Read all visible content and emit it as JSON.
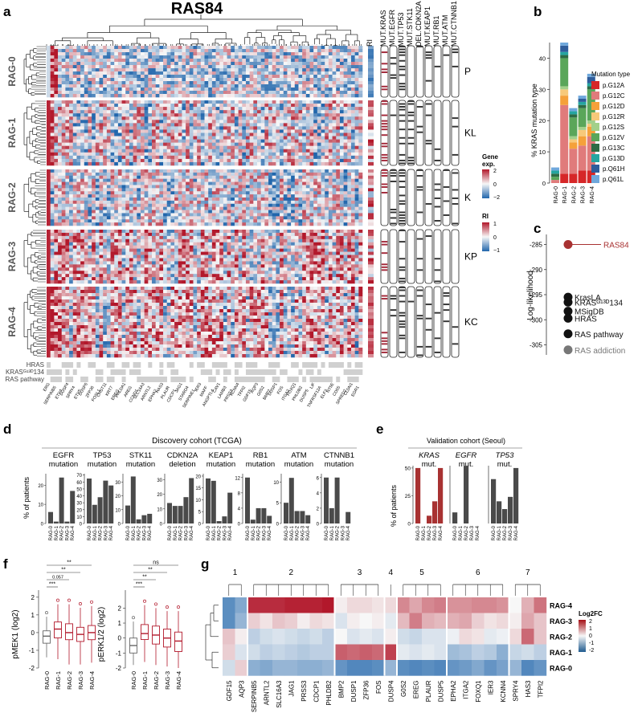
{
  "panel_labels": [
    "a",
    "b",
    "c",
    "d",
    "e",
    "f",
    "g"
  ],
  "panel_a": {
    "title": "RAS84",
    "ri_col_label": "RI",
    "mut_cols": [
      "MUT.KRAS",
      "MUT.EGFR",
      "MUT.TP53",
      "MUT.STK11",
      "DEL.CDKN2A",
      "MUT.KEAP1",
      "MUT.RB1",
      "MUT.ATM",
      "MUT.CTNNB1"
    ],
    "groups": [
      {
        "name": "RAG-0",
        "subtype": "P"
      },
      {
        "name": "RAG-1",
        "subtype": "KL"
      },
      {
        "name": "RAG-2",
        "subtype": "K"
      },
      {
        "name": "RAG-3",
        "subtype": "KP"
      },
      {
        "name": "RAG-4",
        "subtype": "KC"
      }
    ],
    "annot_rows": [
      "HRAS",
      "KRASᴳ¹³ᴰ134",
      "RAS pathway"
    ],
    "legend_gene_title_1": "Gene",
    "legend_gene_title_2": "exp.",
    "legend_gene_ticks": [
      "2",
      "0",
      "−2"
    ],
    "legend_ri_title": "RI",
    "legend_ri_ticks": [
      "1",
      "0",
      "−1"
    ],
    "gene_labels": [
      "ERG",
      "SERPINB5",
      "ETV4",
      "DUSP4",
      "SPRY4",
      "ETV5",
      "DUSP6",
      "ZFP36",
      "FOSL1",
      "CHST11",
      "KRT7",
      "EREG",
      "PHLDA1",
      "AREG",
      "CCND1",
      "SLC16A3",
      "ARNTL2",
      "EPHA2",
      "HAS3",
      "PLAUR",
      "CDCP1",
      "JAG1",
      "STARD4",
      "SERPINE1",
      "IER3",
      "MAFF",
      "ANGPTL4",
      "CAV1",
      "LAMB3",
      "PRSS3",
      "KCNN4",
      "TFPI2",
      "GDF15",
      "AQP3",
      "G0S2",
      "BMP2",
      "DUSP1",
      "FOS",
      "ITGA2",
      "FOXQ1",
      "PHLDB2",
      "DUSP5",
      "LIF",
      "TNFRSF12A",
      "ELF3",
      "NT5E",
      "CD55",
      "SPRED2",
      "CLDN1",
      "EGR1"
    ]
  },
  "panel_b": {
    "ylabel": "% KRAS mutation type",
    "legend_title": "Mutation type",
    "ylim": [
      0,
      45
    ],
    "yticks": [
      "0",
      "10",
      "20",
      "30",
      "40"
    ],
    "legend_items": [
      {
        "name": "p.G12A",
        "color": "#d62728"
      },
      {
        "name": "p.G12C",
        "color": "#e07b7b"
      },
      {
        "name": "p.G12D",
        "color": "#f5a13a"
      },
      {
        "name": "p.G12R",
        "color": "#f7c97a"
      },
      {
        "name": "p.G12S",
        "color": "#a3d08a"
      },
      {
        "name": "p.G12V",
        "color": "#5aa65a"
      },
      {
        "name": "p.G13C",
        "color": "#2e6b45"
      },
      {
        "name": "p.G13D",
        "color": "#25a5a0"
      },
      {
        "name": "p.Q61H",
        "color": "#2f5d9b"
      },
      {
        "name": "p.Q61L",
        "color": "#6fa8dc"
      }
    ]
  },
  "panel_c": {
    "ylabel": "Log-likelihood",
    "yticks": [
      "-285",
      "-290",
      "-295",
      "-300",
      "-305"
    ],
    "ylim": [
      -307,
      -283
    ]
  },
  "panel_d": {
    "title": "Discovery cohort (TCGA)",
    "ylabel": "% of patients"
  },
  "panel_e": {
    "title": "Validation cohort (Seoul)",
    "ylabel": "% of patients",
    "yticks": [
      "0",
      "25",
      "50"
    ]
  },
  "panel_f": {
    "plot1_ylabel": "pMEK1 (log2)",
    "plot2_ylabel": "pERK1/2 (log2)",
    "p_values_1": [
      "***",
      "0.057",
      "**",
      "**"
    ],
    "p_values_2": [
      "***",
      "**",
      "**",
      "ns"
    ]
  },
  "panel_g": {
    "cluster_numbers": [
      "1",
      "2",
      "3",
      "4",
      "5",
      "6",
      "7"
    ],
    "legend_title": "Log2FC",
    "legend_ticks": [
      "2",
      "1",
      "0",
      "-1",
      "-2"
    ],
    "row_labels": [
      "RAG-4",
      "RAG-3",
      "RAG-2",
      "RAG-1",
      "RAG-0"
    ],
    "genes": [
      "GDF15",
      "AQP3",
      "SERPINB5",
      "ARNTL2",
      "SLC16A3",
      "JAG1",
      "PRSS3",
      "CDCP1",
      "PHLDB2",
      "BMP2",
      "DUSP1",
      "ZFP36",
      "FOS",
      "DUSP4",
      "G0S2",
      "EREG",
      "PLAUR",
      "DUSP5",
      "EPHA2",
      "ITGA2",
      "FOXQ1",
      "IER3",
      "KCNN4",
      "SPRY4",
      "HAS3",
      "TFPI2"
    ]
  },
  "chart_data": [
    {
      "id": "b",
      "type": "bar",
      "stacked": true,
      "title": "",
      "xlabel": "",
      "ylabel": "% KRAS mutation type",
      "ylim": [
        0,
        45
      ],
      "categories": [
        "RAG-0",
        "RAG-1",
        "RAG-2",
        "RAG-3",
        "RAG-4"
      ],
      "series": [
        {
          "name": "p.G12A",
          "values": [
            0,
            3,
            3,
            4,
            4
          ]
        },
        {
          "name": "p.G12C",
          "values": [
            1,
            22,
            8,
            8,
            11
          ]
        },
        {
          "name": "p.G12D",
          "values": [
            0,
            3,
            2,
            3,
            3
          ]
        },
        {
          "name": "p.G12R",
          "values": [
            0,
            2,
            1,
            2,
            1
          ]
        },
        {
          "name": "p.G12S",
          "values": [
            0,
            1,
            1,
            1,
            1
          ]
        },
        {
          "name": "p.G12V",
          "values": [
            1,
            9,
            6,
            6,
            10
          ]
        },
        {
          "name": "p.G13C",
          "values": [
            1,
            1,
            1,
            1,
            1
          ]
        },
        {
          "name": "p.G13D",
          "values": [
            1,
            1,
            1,
            1,
            1
          ]
        },
        {
          "name": "p.Q61H",
          "values": [
            0,
            2,
            0,
            1,
            2
          ]
        },
        {
          "name": "p.Q61L",
          "values": [
            1,
            1,
            1,
            1,
            1
          ]
        }
      ]
    },
    {
      "id": "c",
      "type": "scatter",
      "ylabel": "Log-likelihood",
      "ylim": [
        -307,
        -283
      ],
      "points": [
        {
          "name": "RAS84",
          "value": -285.0
        },
        {
          "name": "KrasLA",
          "value": -295.5
        },
        {
          "name": "KRASᴳ¹³ᴰ134",
          "value": -296.5
        },
        {
          "name": "MSigDB",
          "value": -298.3
        },
        {
          "name": "HRAS",
          "value": -299.7
        },
        {
          "name": "RAS pathway",
          "value": -302.8
        },
        {
          "name": "RAS addiction",
          "value": -306.0
        }
      ]
    },
    {
      "id": "d",
      "type": "bar",
      "title": "Discovery cohort (TCGA)",
      "ylabel": "% of patients",
      "categories": [
        "RAG-0",
        "RAG-1",
        "RAG-2",
        "RAG-3",
        "RAG-4"
      ],
      "panels": [
        {
          "label_1": "EGFR",
          "label_2": "mutation",
          "yticks": [
            "0",
            "10",
            "20"
          ],
          "ymax": 26,
          "values": [
            6,
            1,
            24,
            1,
            17
          ]
        },
        {
          "label_1": "TP53",
          "label_2": "mutation",
          "yticks": [
            "0",
            "10",
            "20",
            "30",
            "40",
            "50",
            "60",
            "70"
          ],
          "ymax": 72,
          "values": [
            65,
            27,
            38,
            62,
            55
          ]
        },
        {
          "label_1": "STK11",
          "label_2": "mutation",
          "yticks": [
            "0",
            "10",
            "20",
            "30"
          ],
          "ymax": 36,
          "values": [
            13,
            34,
            3,
            6,
            7
          ]
        },
        {
          "label_1": "CDKN2A",
          "label_2": "deletion",
          "yticks": [
            "0",
            "10",
            "20",
            "30"
          ],
          "ymax": 34,
          "values": [
            14,
            12,
            12,
            18,
            31
          ]
        },
        {
          "label_1": "KEAP1",
          "label_2": "mutation",
          "yticks": [
            "0",
            "5",
            "10",
            "15",
            "20"
          ],
          "ymax": 21,
          "values": [
            19,
            18,
            1,
            3,
            13
          ]
        },
        {
          "label_1": "RB1",
          "label_2": "mutation",
          "yticks": [
            "0",
            "4",
            "8",
            "12"
          ],
          "ymax": 13,
          "values": [
            12,
            1,
            4,
            4,
            2
          ]
        },
        {
          "label_1": "ATM",
          "label_2": "mutation",
          "yticks": [
            "0",
            "5",
            "10"
          ],
          "ymax": 12,
          "values": [
            5,
            11,
            3,
            3,
            2
          ]
        },
        {
          "label_1": "CTNNB1",
          "label_2": "mutation",
          "yticks": [
            "0",
            "2",
            "4",
            "6"
          ],
          "ymax": 6.5,
          "values": [
            6,
            2,
            6,
            0,
            1.5
          ]
        }
      ]
    },
    {
      "id": "e",
      "type": "bar",
      "title": "Validation cohort (Seoul)",
      "ylabel": "% of patients",
      "ylim": [
        0,
        55
      ],
      "categories": [
        "RAG-0",
        "RAG-1",
        "RAG-2",
        "RAG-3",
        "RAG-4"
      ],
      "panels": [
        {
          "label_1": "KRAS",
          "label_2": "mut.",
          "color": "#a83232",
          "values": [
            50,
            0,
            7,
            20,
            50
          ]
        },
        {
          "label_1": "EGFR",
          "label_2": "mut.",
          "color": "#4a4a4a",
          "values": [
            10,
            0,
            52,
            0,
            0
          ]
        },
        {
          "label_1": "TP53",
          "label_2": "mut.",
          "color": "#4a4a4a",
          "values": [
            40,
            20,
            13,
            24,
            50
          ]
        }
      ]
    },
    {
      "id": "f",
      "type": "boxplot",
      "categories": [
        "RAG-0",
        "RAG-1",
        "RAG-2",
        "RAG-3",
        "RAG-4"
      ],
      "panels": [
        {
          "ylabel": "pMEK1 (log2)",
          "ylim": [
            -2,
            2.4
          ],
          "yticks": [
            "-2",
            "-1",
            "0",
            "1",
            "2"
          ],
          "boxes": [
            {
              "q1": -0.6,
              "median": -0.2,
              "q3": 0.1,
              "lo": -1.4,
              "hi": 0.9
            },
            {
              "q1": -0.3,
              "median": 0.2,
              "q3": 0.6,
              "lo": -1.5,
              "hi": 1.6
            },
            {
              "q1": -0.4,
              "median": 0.0,
              "q3": 0.5,
              "lo": -1.8,
              "hi": 1.6
            },
            {
              "q1": -0.5,
              "median": -0.1,
              "q3": 0.3,
              "lo": -1.8,
              "hi": 1.4
            },
            {
              "q1": -0.4,
              "median": 0.0,
              "q3": 0.4,
              "lo": -1.7,
              "hi": 1.5
            }
          ],
          "p_values": [
            "***",
            "0.057",
            "**",
            "**"
          ]
        },
        {
          "ylabel": "pERK1/2 (log2)",
          "ylim": [
            -2,
            3.2
          ],
          "yticks": [
            "-2",
            "-1",
            "0",
            "1",
            "2"
          ],
          "boxes": [
            {
              "q1": -1.0,
              "median": -0.5,
              "q3": 0.0,
              "lo": -1.8,
              "hi": 1.1
            },
            {
              "q1": -0.1,
              "median": 0.3,
              "q3": 0.9,
              "lo": -1.6,
              "hi": 2.2
            },
            {
              "q1": -0.4,
              "median": 0.2,
              "q3": 0.8,
              "lo": -1.8,
              "hi": 2.0
            },
            {
              "q1": -0.6,
              "median": 0.0,
              "q3": 0.6,
              "lo": -1.9,
              "hi": 1.8
            },
            {
              "q1": -0.9,
              "median": -0.2,
              "q3": 0.4,
              "lo": -2.0,
              "hi": 1.8
            }
          ],
          "p_values": [
            "***",
            "**",
            "**",
            "ns"
          ]
        }
      ]
    },
    {
      "id": "g",
      "type": "heatmap",
      "legend_title": "Log2FC",
      "rows": [
        "RAG-4",
        "RAG-3",
        "RAG-2",
        "RAG-1",
        "RAG-0"
      ],
      "columns": [
        "GDF15",
        "AQP3",
        "SERPINB5",
        "ARNTL2",
        "SLC16A3",
        "JAG1",
        "PRSS3",
        "CDCP1",
        "PHLDB2",
        "BMP2",
        "DUSP1",
        "ZFP36",
        "FOS",
        "DUSP4",
        "G0S2",
        "EREG",
        "PLAUR",
        "DUSP5",
        "EPHA2",
        "ITGA2",
        "FOXQ1",
        "IER3",
        "KCNN4",
        "SPRY4",
        "HAS3",
        "TFPI2"
      ],
      "values": [
        [
          -1.6,
          -1.2,
          2.0,
          2.0,
          2.0,
          2.1,
          2.1,
          2.1,
          2.2,
          0.1,
          0.3,
          0.3,
          0.2,
          0.3,
          1.1,
          0.8,
          1.1,
          1.2,
          1.0,
          1.0,
          1.1,
          1.1,
          1.0,
          0.0,
          0.7,
          1.3
        ],
        [
          -1.6,
          -1.0,
          0.4,
          0.2,
          0.5,
          0.4,
          0.1,
          0.3,
          0.2,
          -0.3,
          0.1,
          0.0,
          0.1,
          -0.2,
          0.6,
          1.2,
          0.7,
          0.6,
          0.7,
          0.8,
          0.4,
          0.2,
          0.3,
          0.1,
          0.8,
          0.5
        ],
        [
          0.5,
          0.1,
          -0.6,
          -0.4,
          -0.3,
          -0.4,
          -0.5,
          -0.4,
          -0.6,
          0.0,
          -0.3,
          -0.2,
          -0.3,
          0.1,
          -0.4,
          -0.5,
          -0.3,
          -0.3,
          -0.1,
          0.3,
          0.2,
          -0.2,
          -0.1,
          0.3,
          1.4,
          0.5
        ],
        [
          0.4,
          -0.3,
          -0.4,
          -0.6,
          -0.5,
          -0.6,
          -0.7,
          -0.6,
          -0.6,
          1.5,
          1.4,
          1.5,
          1.4,
          1.8,
          -0.2,
          -0.3,
          -0.2,
          -0.3,
          -0.9,
          -0.8,
          -0.6,
          -0.7,
          -1.1,
          -0.5,
          -0.4,
          -0.6
        ],
        [
          -0.4,
          0.4,
          -1.1,
          -1.2,
          -1.0,
          -1.0,
          -1.1,
          -1.1,
          -1.0,
          -1.5,
          -1.7,
          -1.7,
          -1.6,
          -1.0,
          -1.6,
          -1.7,
          -1.6,
          -1.7,
          -1.5,
          -1.4,
          -1.2,
          -1.5,
          -1.3,
          -1.0,
          -1.7,
          -1.5
        ]
      ]
    }
  ]
}
